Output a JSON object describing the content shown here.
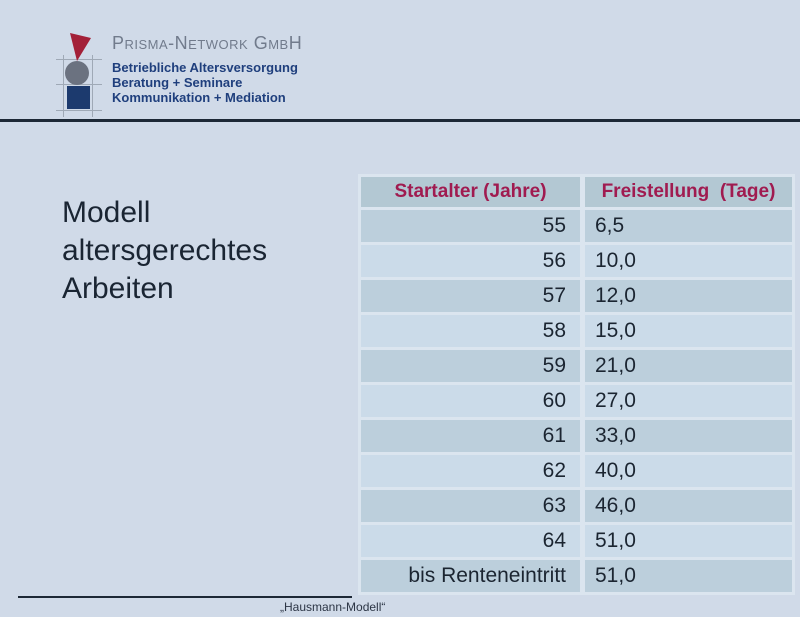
{
  "logo": {
    "company": "Prisma-Network GmbH",
    "taglines": [
      "Betriebliche Altersversorgung",
      "Beratung + Seminare",
      "Kommunikation + Mediation"
    ]
  },
  "title": "Modell\naltersgerechtes\nArbeiten",
  "table": {
    "headers": [
      "Startalter (Jahre)",
      "Freistellung  (Tage)"
    ],
    "rows": [
      [
        "55",
        "6,5"
      ],
      [
        "56",
        "10,0"
      ],
      [
        "57",
        "12,0"
      ],
      [
        "58",
        "15,0"
      ],
      [
        "59",
        "21,0"
      ],
      [
        "60",
        "27,0"
      ],
      [
        "61",
        "33,0"
      ],
      [
        "62",
        "40,0"
      ],
      [
        "63",
        "46,0"
      ],
      [
        "64",
        "51,0"
      ],
      [
        "bis Renteneintritt",
        "51,0"
      ]
    ]
  },
  "footer": {
    "label": "„Hausmann-Modell“"
  },
  "colors": {
    "page_background": "#d0dae8",
    "accent_magenta": "#a01b50",
    "table_header_bg": "#b3c8d3",
    "row_dark": "#bccfdc",
    "row_light": "#cbdbe9",
    "divider_navy": "#1c2836",
    "logo_triangle": "#a32038",
    "logo_circle": "#6b7280",
    "logo_square": "#1c3a6e",
    "brand_gray": "#717b8c",
    "brand_navy": "#1f3f7d"
  }
}
